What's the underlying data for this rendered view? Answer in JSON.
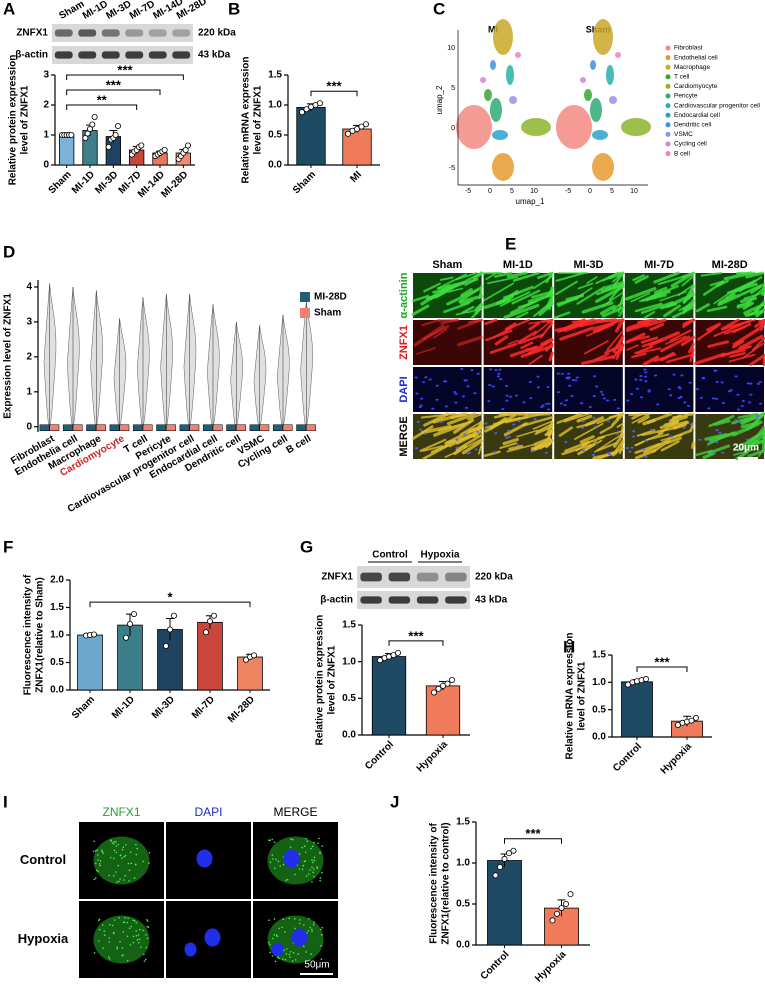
{
  "panel_labels": [
    "A",
    "B",
    "C",
    "D",
    "E",
    "F",
    "G",
    "H",
    "I",
    "J"
  ],
  "blot_A": {
    "lanes": [
      "Sham",
      "MI-1D",
      "MI-3D",
      "MI-7D",
      "MI-14D",
      "MI-28D"
    ],
    "rows": [
      {
        "protein": "ZNFX1",
        "size": "220 kDa"
      },
      {
        "protein": "β-actin",
        "size": "43 kDa"
      }
    ]
  },
  "blot_G": {
    "groups": [
      "Control",
      "Hypoxia"
    ],
    "rows": [
      {
        "protein": "ZNFX1",
        "size": "220 kDa"
      },
      {
        "protein": "β-actin",
        "size": "43 kDa"
      }
    ]
  },
  "umap": {
    "panels": [
      "MI",
      "Sham"
    ],
    "xlabel": "umap_1",
    "ylabel": "umap_2",
    "xticks": [
      "-5",
      "0",
      "5",
      "10"
    ],
    "yticks": [
      "-5",
      "0",
      "5",
      "10"
    ],
    "legend": [
      {
        "name": "Fibroblast",
        "color": "#f28a84"
      },
      {
        "name": "Endothelial cell",
        "color": "#e69a2e"
      },
      {
        "name": "Macrophage",
        "color": "#c9a826"
      },
      {
        "name": "T cell",
        "color": "#3aa535"
      },
      {
        "name": "Cardiomyocyte",
        "color": "#8db52a"
      },
      {
        "name": "Pericyte",
        "color": "#2eaa74"
      },
      {
        "name": "Cardiovascular progenitor cell",
        "color": "#27b0a6"
      },
      {
        "name": "Endocardial cell",
        "color": "#27a2cc"
      },
      {
        "name": "Dendritic cell",
        "color": "#4190da"
      },
      {
        "name": "VSMC",
        "color": "#9a8fe8"
      },
      {
        "name": "Cycling cell",
        "color": "#d37fe2"
      },
      {
        "name": "B cell",
        "color": "#f07fc2"
      }
    ]
  },
  "microscopy_E": {
    "columns": [
      "Sham",
      "MI-1D",
      "MI-3D",
      "MI-7D",
      "MI-28D"
    ],
    "rows": [
      {
        "label": "α-actinin",
        "color": "#1fa52a"
      },
      {
        "label": "ZNFX1",
        "color": "#e01b1b"
      },
      {
        "label": "DAPI",
        "color": "#1b2bd0"
      },
      {
        "label": "MERGE",
        "color": "#000000"
      }
    ],
    "scale": "20μm"
  },
  "microscopy_I": {
    "columns": [
      {
        "label": "ZNFX1",
        "color": "#1fa52a"
      },
      {
        "label": "DAPI",
        "color": "#1b2bd0"
      },
      {
        "label": "MERGE",
        "color": "#000000"
      }
    ],
    "rows": [
      "Control",
      "Hypoxia"
    ],
    "scale": "50μm"
  },
  "chart_data": [
    {
      "type": "bar",
      "ylabel": [
        "Relative protein expression",
        "level of ZNFX1"
      ],
      "categories": [
        "Sham",
        "MI-1D",
        "MI-3D",
        "MI-7D",
        "MI-14D",
        "MI-28D"
      ],
      "values": [
        1.0,
        1.15,
        0.95,
        0.5,
        0.4,
        0.4
      ],
      "errors": [
        0.02,
        0.18,
        0.2,
        0.12,
        0.06,
        0.12
      ],
      "points": [
        [
          1,
          1,
          1,
          1,
          1
        ],
        [
          0.9,
          1.05,
          1.2,
          1.35,
          1.6
        ],
        [
          0.6,
          0.85,
          0.9,
          1.0,
          1.3
        ],
        [
          0.35,
          0.45,
          0.5,
          0.6,
          0.65
        ],
        [
          0.3,
          0.35,
          0.4,
          0.45,
          0.5
        ],
        [
          0.2,
          0.3,
          0.4,
          0.5,
          0.65
        ]
      ],
      "colors": [
        "#7cb2d8",
        "#3f7f8c",
        "#1f4360",
        "#c4473b",
        "#e8775a",
        "#f08c6b"
      ],
      "ylim": [
        0,
        3
      ],
      "yticks": [
        0,
        1,
        2,
        3
      ],
      "annotations": [
        {
          "text": "**",
          "from": 0,
          "to": 3
        },
        {
          "text": "***",
          "from": 0,
          "to": 4
        },
        {
          "text": "***",
          "from": 0,
          "to": 5
        }
      ]
    },
    {
      "type": "bar",
      "ylabel": [
        "Relative mRNA expression",
        "level of ZNFX1"
      ],
      "categories": [
        "Sham",
        "MI"
      ],
      "values": [
        0.96,
        0.6
      ],
      "errors": [
        0.06,
        0.06
      ],
      "points": [
        [
          0.88,
          0.93,
          0.97,
          1.0,
          1.03
        ],
        [
          0.52,
          0.57,
          0.6,
          0.64,
          0.68
        ]
      ],
      "colors": [
        "#1f4a63",
        "#ef7b5a"
      ],
      "ylim": [
        0,
        1.5
      ],
      "yticks": [
        {
          "value": 0,
          "label": "0.0"
        },
        {
          "value": 0.5,
          "label": "0.5"
        },
        {
          "value": 1,
          "label": "1.0"
        },
        {
          "value": 1.5,
          "label": "1.5"
        }
      ],
      "annotations": [
        {
          "text": "***",
          "from": 0,
          "to": 1
        }
      ]
    },
    {
      "type": "violin",
      "ylabel": [
        "Expression level of ZNFX1"
      ],
      "categories": [
        "Fibroblast",
        "Endothelia cell",
        "Macrophage",
        "Cardiomyocyte",
        "T cell",
        "Pericyte",
        "Cardiovascular progenitor cell",
        "Endocardial cell",
        "Dendritic cell",
        "VSMC",
        "Cycling cell",
        "B cell"
      ],
      "highlight": "Cardiomyocyte",
      "highlight_color": "#d42020",
      "max": [
        4.1,
        4.0,
        3.9,
        3.1,
        3.7,
        3.8,
        3.8,
        3.5,
        3.0,
        2.9,
        3.2,
        3.6
      ],
      "series": [
        {
          "name": "MI-28D",
          "color": "#1f5f7a",
          "values": [
            0,
            0,
            0,
            0,
            0,
            0,
            0,
            0,
            0,
            0,
            0,
            0
          ]
        },
        {
          "name": "Sham",
          "color": "#f08070",
          "values": [
            0,
            0,
            0,
            0,
            0,
            0,
            0,
            0,
            0,
            0,
            0,
            0
          ]
        }
      ],
      "ylim": [
        -0.15,
        4.2
      ],
      "yticks": [
        0,
        1,
        2,
        3,
        4
      ]
    },
    {
      "type": "bar",
      "ylabel": [
        "Fluorescence intensity of",
        "ZNFX1(relative to Sham)"
      ],
      "categories": [
        "Sham",
        "MI-1D",
        "MI-3D",
        "MI-7D",
        "MI-28D"
      ],
      "values": [
        1.0,
        1.18,
        1.1,
        1.23,
        0.6
      ],
      "errors": [
        0.01,
        0.2,
        0.2,
        0.12,
        0.05
      ],
      "points": [
        [
          0.99,
          1.0,
          1.01
        ],
        [
          0.95,
          1.2,
          1.38
        ],
        [
          0.8,
          1.1,
          1.35
        ],
        [
          1.05,
          1.25,
          1.35
        ],
        [
          0.55,
          0.6,
          0.63
        ]
      ],
      "colors": [
        "#6fa8cf",
        "#3b7d89",
        "#1e4461",
        "#c9463b",
        "#ee8462"
      ],
      "ylim": [
        0,
        2
      ],
      "yticks": [
        {
          "value": 0,
          "label": "0.0"
        },
        {
          "value": 0.5,
          "label": "0.5"
        },
        {
          "value": 1,
          "label": "1.0"
        },
        {
          "value": 1.5,
          "label": "1.5"
        },
        {
          "value": 2,
          "label": "2.0"
        }
      ],
      "annotations": [
        {
          "text": "*",
          "from": 0,
          "to": 4
        }
      ]
    },
    {
      "type": "bar",
      "ylabel": [
        "Relative protein expression",
        "level of ZNFX1"
      ],
      "categories": [
        "Control",
        "Hypoxia"
      ],
      "values": [
        1.07,
        0.67
      ],
      "errors": [
        0.04,
        0.06
      ],
      "points": [
        [
          1.02,
          1.05,
          1.07,
          1.09,
          1.12
        ],
        [
          0.58,
          0.63,
          0.67,
          0.7,
          0.75
        ]
      ],
      "colors": [
        "#1f4a63",
        "#ef7b5a"
      ],
      "ylim": [
        0,
        1.5
      ],
      "yticks": [
        {
          "value": 0,
          "label": "0.0"
        },
        {
          "value": 0.5,
          "label": "0.5"
        },
        {
          "value": 1,
          "label": "1.0"
        },
        {
          "value": 1.5,
          "label": "1.5"
        }
      ],
      "annotations": [
        {
          "text": "***",
          "from": 0,
          "to": 1
        }
      ]
    },
    {
      "type": "bar",
      "ylabel": [
        "Relative mRNA expression",
        "level of ZNFX1"
      ],
      "categories": [
        "Control",
        "Hypoxia"
      ],
      "values": [
        1.01,
        0.29
      ],
      "errors": [
        0.04,
        0.09
      ],
      "points": [
        [
          0.96,
          1.0,
          1.02,
          1.04,
          1.06
        ],
        [
          0.22,
          0.26,
          0.28,
          0.3,
          0.35
        ]
      ],
      "colors": [
        "#1f4a63",
        "#ef7b5a"
      ],
      "ylim": [
        0,
        1.5
      ],
      "yticks": [
        {
          "value": 0,
          "label": "0.0"
        },
        {
          "value": 0.5,
          "label": "0.5"
        },
        {
          "value": 1,
          "label": "1.0"
        },
        {
          "value": 1.5,
          "label": "1.5"
        }
      ],
      "annotations": [
        {
          "text": "***",
          "from": 0,
          "to": 1
        }
      ]
    },
    {
      "type": "bar",
      "ylabel": [
        "Fluorescence intensity of",
        "ZNFX1(relative to control)"
      ],
      "categories": [
        "Control",
        "Hypoxia"
      ],
      "values": [
        1.03,
        0.45
      ],
      "errors": [
        0.08,
        0.1
      ],
      "points": [
        [
          0.85,
          0.95,
          1.05,
          1.12,
          1.15
        ],
        [
          0.3,
          0.38,
          0.45,
          0.5,
          0.62
        ]
      ],
      "colors": [
        "#1f4a63",
        "#ef7b5a"
      ],
      "ylim": [
        0,
        1.5
      ],
      "yticks": [
        {
          "value": 0,
          "label": "0.0"
        },
        {
          "value": 0.5,
          "label": "0.5"
        },
        {
          "value": 1,
          "label": "1.0"
        },
        {
          "value": 1.5,
          "label": "1.5"
        }
      ],
      "annotations": [
        {
          "text": "***",
          "from": 0,
          "to": 1
        }
      ]
    }
  ]
}
